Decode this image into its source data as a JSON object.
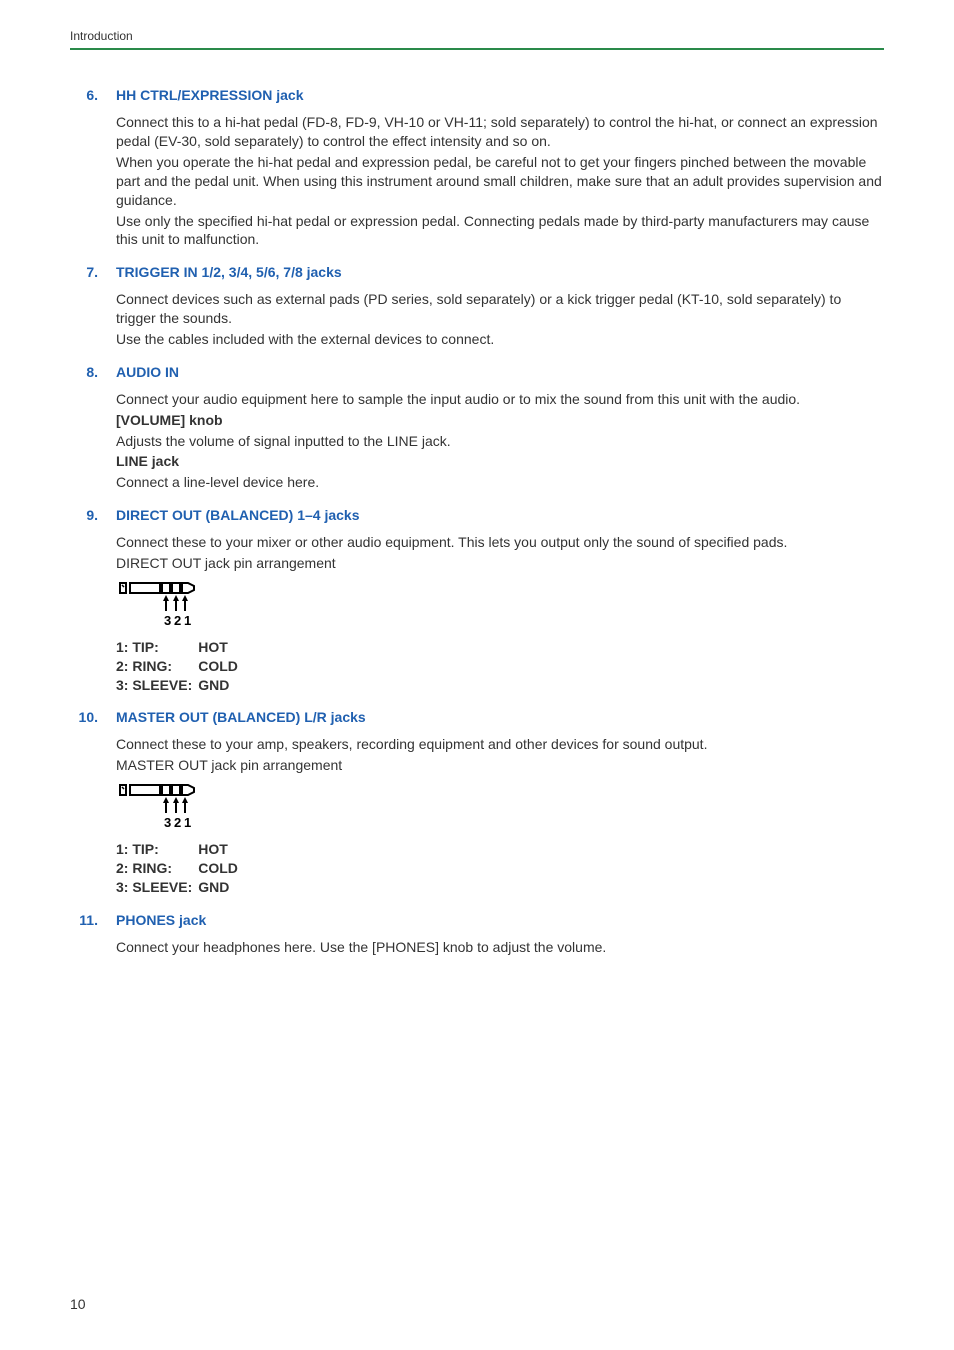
{
  "header": "Introduction",
  "pageNumber": "10",
  "colors": {
    "heading": "#2060b0",
    "rule": "#2a8a4a",
    "text": "#333333",
    "background": "#ffffff"
  },
  "typography": {
    "body_fontsize": 14,
    "header_fontsize": 12,
    "heading_fontsize": 14,
    "font_family": "Segoe UI"
  },
  "pinLegend": {
    "rows": [
      [
        "1: TIP:",
        "HOT"
      ],
      [
        "2: RING:",
        "COLD"
      ],
      [
        "3: SLEEVE:",
        "GND"
      ]
    ],
    "numbers": [
      "3",
      "2",
      "1"
    ]
  },
  "items": [
    {
      "num": "6.",
      "title": "HH CTRL/EXPRESSION jack",
      "paragraphs": [
        "Connect this to a hi-hat pedal (FD-8, FD-9, VH-10 or VH-11; sold separately) to control the hi-hat, or connect an expression pedal (EV-30, sold separately) to control the effect intensity and so on.",
        "When you operate the hi-hat pedal and expression pedal, be careful not to get your fingers pinched between the movable part and the pedal unit. When using this instrument around small children, make sure that an adult provides supervision and guidance.",
        "Use only the specified hi-hat pedal or expression pedal. Connecting pedals made by third-party manufacturers may cause this unit to malfunction."
      ]
    },
    {
      "num": "7.",
      "title": "TRIGGER IN 1/2, 3/4, 5/6, 7/8 jacks",
      "paragraphs": [
        "Connect devices such as external pads (PD series, sold separately) or a kick trigger pedal (KT-10, sold separately) to trigger the sounds.",
        "Use the cables included with the external devices to connect."
      ]
    },
    {
      "num": "8.",
      "title": "AUDIO IN",
      "paragraphs": [
        "Connect your audio equipment here to sample the input audio or to mix the sound from this unit with the audio."
      ],
      "subs": [
        {
          "label": "[VOLUME] knob",
          "text": "Adjusts the volume of signal inputted to the LINE jack."
        },
        {
          "label": "LINE jack",
          "text": "Connect a line-level device here."
        }
      ]
    },
    {
      "num": "9.",
      "title": "DIRECT OUT (BALANCED) 1–4 jacks",
      "paragraphs": [
        "Connect these to your mixer or other audio equipment. This lets you output only the sound of specified pads.",
        "DIRECT OUT jack pin arrangement"
      ],
      "diagram": true
    },
    {
      "num": "10.",
      "title": "MASTER OUT (BALANCED) L/R jacks",
      "paragraphs": [
        "Connect these to your amp, speakers, recording equipment and other devices for sound output.",
        "MASTER OUT jack pin arrangement"
      ],
      "diagram": true
    },
    {
      "num": "11.",
      "title": "PHONES jack",
      "paragraphs": [
        "Connect your headphones here. Use the [PHONES] knob to adjust the volume."
      ]
    }
  ]
}
